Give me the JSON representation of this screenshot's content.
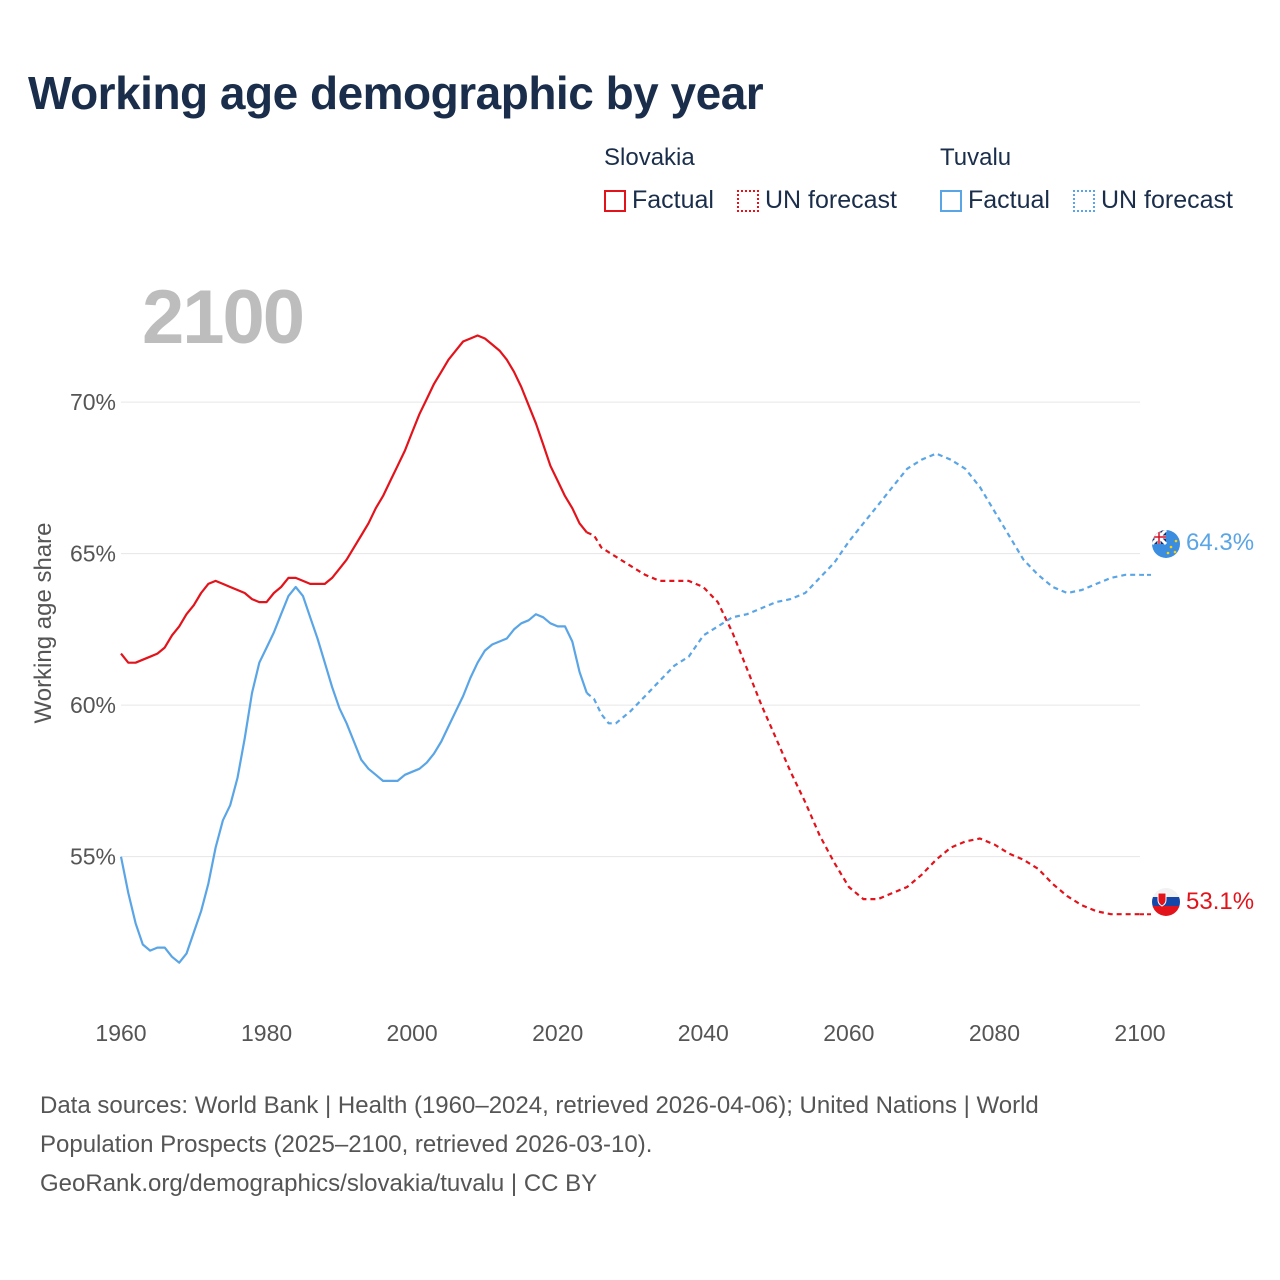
{
  "title": "Working age demographic by year",
  "legend": {
    "groups": [
      {
        "name": "Slovakia",
        "color": "#e3131b",
        "factual_label": "Factual",
        "forecast_label": "UN forecast"
      },
      {
        "name": "Tuvalu",
        "color": "#5aa5e6",
        "factual_label": "Factual",
        "forecast_label": "UN forecast"
      }
    ]
  },
  "year_label": "2100",
  "footer": {
    "line1": "Data sources: World Bank | Health (1960–2024, retrieved 2026-04-06); United Nations | World",
    "line2": "Population Prospects (2025–2100, retrieved 2026-03-10).",
    "line3": "GeoRank.org/demographics/slovakia/tuvalu | CC BY"
  },
  "chart_data": {
    "type": "line",
    "title": "Working age demographic by year",
    "ylabel": "Working age share",
    "xlabel": "",
    "xlim": [
      1960,
      2100
    ],
    "ylim": [
      50.6,
      73.7
    ],
    "x_ticks": [
      1960,
      1980,
      2000,
      2020,
      2040,
      2060,
      2080,
      2100
    ],
    "x_tick_labels": [
      "1960",
      "1980",
      "2000",
      "2020",
      "2040",
      "2060",
      "2080",
      "2100"
    ],
    "y_ticks": [
      55,
      60,
      65,
      70
    ],
    "y_tick_labels": [
      "55%",
      "60%",
      "65%",
      "70%"
    ],
    "grid": true,
    "series": [
      {
        "name": "Slovakia",
        "color": "#e3131b",
        "end_label": "53.1%",
        "factual": {
          "x": [
            1960,
            1961,
            1962,
            1963,
            1964,
            1965,
            1966,
            1967,
            1968,
            1969,
            1970,
            1971,
            1972,
            1973,
            1974,
            1975,
            1976,
            1977,
            1978,
            1979,
            1980,
            1981,
            1982,
            1983,
            1984,
            1985,
            1986,
            1987,
            1988,
            1989,
            1990,
            1991,
            1992,
            1993,
            1994,
            1995,
            1996,
            1997,
            1998,
            1999,
            2000,
            2001,
            2002,
            2003,
            2004,
            2005,
            2006,
            2007,
            2008,
            2009,
            2010,
            2011,
            2012,
            2013,
            2014,
            2015,
            2016,
            2017,
            2018,
            2019,
            2020,
            2021,
            2022,
            2023,
            2024
          ],
          "y": [
            61.7,
            61.4,
            61.4,
            61.5,
            61.6,
            61.7,
            61.9,
            62.3,
            62.6,
            63.0,
            63.3,
            63.7,
            64.0,
            64.1,
            64.0,
            63.9,
            63.8,
            63.7,
            63.5,
            63.4,
            63.4,
            63.7,
            63.9,
            64.2,
            64.2,
            64.1,
            64.0,
            64.0,
            64.0,
            64.2,
            64.5,
            64.8,
            65.2,
            65.6,
            66.0,
            66.5,
            66.9,
            67.4,
            67.9,
            68.4,
            69.0,
            69.6,
            70.1,
            70.6,
            71.0,
            71.4,
            71.7,
            72.0,
            72.1,
            72.2,
            72.1,
            71.9,
            71.7,
            71.4,
            71.0,
            70.5,
            69.9,
            69.3,
            68.6,
            67.9,
            67.4,
            66.9,
            66.5,
            66.0,
            65.7
          ]
        },
        "forecast": {
          "x": [
            2024,
            2025,
            2026,
            2028,
            2030,
            2032,
            2034,
            2036,
            2038,
            2040,
            2042,
            2044,
            2046,
            2048,
            2050,
            2052,
            2054,
            2056,
            2058,
            2060,
            2062,
            2064,
            2066,
            2068,
            2070,
            2072,
            2074,
            2076,
            2078,
            2080,
            2082,
            2084,
            2086,
            2088,
            2090,
            2092,
            2094,
            2096,
            2098,
            2100
          ],
          "y": [
            65.7,
            65.6,
            65.2,
            64.9,
            64.6,
            64.3,
            64.1,
            64.1,
            64.1,
            63.9,
            63.4,
            62.4,
            61.2,
            60.0,
            58.9,
            57.8,
            56.8,
            55.7,
            54.8,
            54.0,
            53.6,
            53.6,
            53.8,
            54.0,
            54.4,
            54.9,
            55.3,
            55.5,
            55.6,
            55.4,
            55.1,
            54.9,
            54.6,
            54.1,
            53.7,
            53.4,
            53.2,
            53.1,
            53.1,
            53.1
          ]
        }
      },
      {
        "name": "Tuvalu",
        "color": "#5aa5e6",
        "end_label": "64.3%",
        "factual": {
          "x": [
            1960,
            1961,
            1962,
            1963,
            1964,
            1965,
            1966,
            1967,
            1968,
            1969,
            1970,
            1971,
            1972,
            1973,
            1974,
            1975,
            1976,
            1977,
            1978,
            1979,
            1980,
            1981,
            1982,
            1983,
            1984,
            1985,
            1986,
            1987,
            1988,
            1989,
            1990,
            1991,
            1992,
            1993,
            1994,
            1995,
            1996,
            1997,
            1998,
            1999,
            2000,
            2001,
            2002,
            2003,
            2004,
            2005,
            2006,
            2007,
            2008,
            2009,
            2010,
            2011,
            2012,
            2013,
            2014,
            2015,
            2016,
            2017,
            2018,
            2019,
            2020,
            2021,
            2022,
            2023,
            2024
          ],
          "y": [
            55.0,
            53.8,
            52.8,
            52.1,
            51.9,
            52.0,
            52.0,
            51.7,
            51.5,
            51.8,
            52.5,
            53.2,
            54.1,
            55.3,
            56.2,
            56.7,
            57.6,
            58.9,
            60.4,
            61.4,
            61.9,
            62.4,
            63.0,
            63.6,
            63.9,
            63.6,
            62.9,
            62.2,
            61.4,
            60.6,
            59.9,
            59.4,
            58.8,
            58.2,
            57.9,
            57.7,
            57.5,
            57.5,
            57.5,
            57.7,
            57.8,
            57.9,
            58.1,
            58.4,
            58.8,
            59.3,
            59.8,
            60.3,
            60.9,
            61.4,
            61.8,
            62.0,
            62.1,
            62.2,
            62.5,
            62.7,
            62.8,
            63.0,
            62.9,
            62.7,
            62.6,
            62.6,
            62.1,
            61.1,
            60.4
          ]
        },
        "forecast": {
          "x": [
            2024,
            2025,
            2026,
            2027,
            2028,
            2030,
            2032,
            2034,
            2036,
            2038,
            2040,
            2042,
            2044,
            2046,
            2048,
            2050,
            2052,
            2054,
            2056,
            2058,
            2060,
            2062,
            2064,
            2066,
            2068,
            2070,
            2072,
            2074,
            2076,
            2078,
            2080,
            2082,
            2084,
            2086,
            2088,
            2090,
            2092,
            2094,
            2096,
            2098,
            2100
          ],
          "y": [
            60.4,
            60.2,
            59.7,
            59.4,
            59.4,
            59.8,
            60.3,
            60.8,
            61.3,
            61.6,
            62.3,
            62.6,
            62.9,
            63.0,
            63.2,
            63.4,
            63.5,
            63.7,
            64.2,
            64.7,
            65.4,
            66.0,
            66.6,
            67.2,
            67.8,
            68.1,
            68.3,
            68.1,
            67.8,
            67.2,
            66.4,
            65.6,
            64.8,
            64.3,
            63.9,
            63.7,
            63.8,
            64.0,
            64.2,
            64.3,
            64.3
          ]
        }
      }
    ]
  }
}
